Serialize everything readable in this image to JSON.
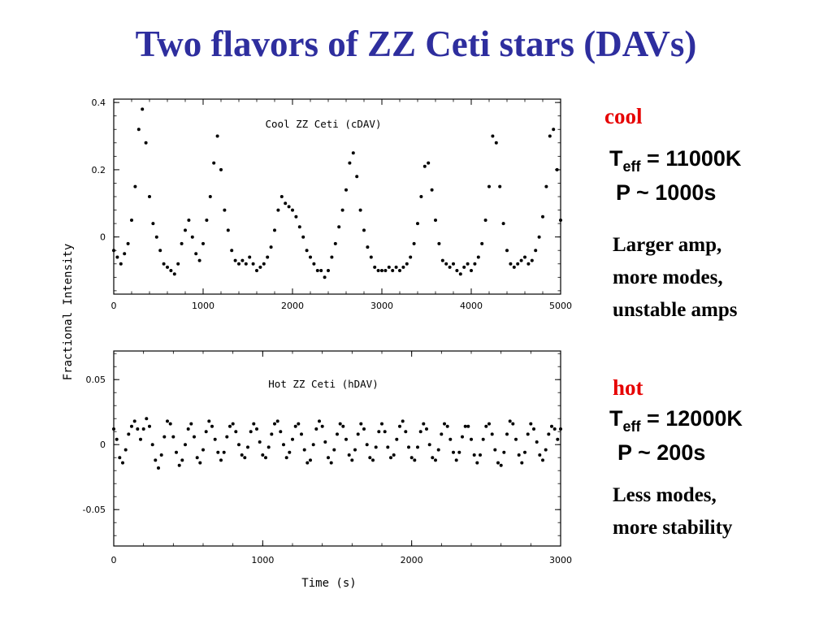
{
  "slide": {
    "title": "Two flavors of ZZ Ceti stars (DAVs)"
  },
  "cool": {
    "tag": "cool",
    "teff_prefix": "T",
    "teff_sub": "eff",
    "teff_value": " = 11000K",
    "period": "P ~ 1000s",
    "desc": [
      "Larger amp,",
      "more modes,",
      "unstable amps"
    ]
  },
  "hot": {
    "tag": "hot",
    "teff_prefix": "T",
    "teff_sub": "eff",
    "teff_value": " = 12000K",
    "period": "P ~ 200s",
    "desc": [
      "Less modes,",
      "more stability"
    ]
  },
  "chart_data": [
    {
      "type": "scatter",
      "title": "Cool ZZ Ceti (cDAV)",
      "xlim": [
        0,
        5000
      ],
      "ylim": [
        -0.17,
        0.41
      ],
      "xticks": [
        0,
        1000,
        2000,
        3000,
        4000,
        5000
      ],
      "yticks": [
        {
          "v": 0.4,
          "label": "0.4"
        },
        {
          "v": 0.2,
          "label": "0.2"
        },
        {
          "v": 0,
          "label": "0"
        }
      ],
      "ylabel": "Fractional Intensity",
      "xlabel": "",
      "color": "#000000",
      "series": [
        {
          "x": [
            0,
            40,
            80,
            120,
            160,
            200,
            240,
            280,
            320,
            360,
            400,
            440,
            480,
            520,
            560,
            600,
            640,
            680,
            720,
            760,
            800,
            840,
            880,
            920,
            960,
            1000,
            1040,
            1080,
            1120,
            1160,
            1200,
            1240,
            1280,
            1320,
            1360,
            1400,
            1440,
            1480,
            1520,
            1560,
            1600,
            1640,
            1680,
            1720,
            1760,
            1800,
            1840,
            1880,
            1920,
            1960,
            2000,
            2040,
            2080,
            2120,
            2160,
            2200,
            2240,
            2280,
            2320,
            2360,
            2400,
            2440,
            2480,
            2520,
            2560,
            2600,
            2640,
            2680,
            2720,
            2760,
            2800,
            2840,
            2880,
            2920,
            2960,
            3000,
            3040,
            3080,
            3120,
            3160,
            3200,
            3240,
            3280,
            3320,
            3360,
            3400,
            3440,
            3480,
            3520,
            3560,
            3600,
            3640,
            3680,
            3720,
            3760,
            3800,
            3840,
            3880,
            3920,
            3960,
            4000,
            4040,
            4080,
            4120,
            4160,
            4200,
            4240,
            4280,
            4320,
            4360,
            4400,
            4440,
            4480,
            4520,
            4560,
            4600,
            4640,
            4680,
            4720,
            4760,
            4800,
            4840,
            4880,
            4920,
            4960,
            5000
          ],
          "y": [
            -0.04,
            -0.06,
            -0.08,
            -0.05,
            -0.02,
            0.05,
            0.15,
            0.32,
            0.38,
            0.28,
            0.12,
            0.04,
            0.0,
            -0.04,
            -0.08,
            -0.09,
            -0.1,
            -0.11,
            -0.08,
            -0.02,
            0.02,
            0.05,
            0.0,
            -0.05,
            -0.07,
            -0.02,
            0.05,
            0.12,
            0.22,
            0.3,
            0.2,
            0.08,
            0.02,
            -0.04,
            -0.07,
            -0.08,
            -0.07,
            -0.08,
            -0.06,
            -0.08,
            -0.1,
            -0.09,
            -0.08,
            -0.06,
            -0.03,
            0.02,
            0.08,
            0.12,
            0.1,
            0.09,
            0.08,
            0.06,
            0.03,
            0.0,
            -0.04,
            -0.06,
            -0.08,
            -0.1,
            -0.1,
            -0.12,
            -0.1,
            -0.06,
            -0.02,
            0.03,
            0.08,
            0.14,
            0.22,
            0.25,
            0.18,
            0.08,
            0.02,
            -0.03,
            -0.06,
            -0.09,
            -0.1,
            -0.1,
            -0.1,
            -0.09,
            -0.1,
            -0.09,
            -0.1,
            -0.09,
            -0.08,
            -0.06,
            -0.02,
            0.04,
            0.12,
            0.21,
            0.22,
            0.14,
            0.05,
            -0.02,
            -0.07,
            -0.08,
            -0.09,
            -0.08,
            -0.1,
            -0.11,
            -0.09,
            -0.08,
            -0.1,
            -0.08,
            -0.06,
            -0.02,
            0.05,
            0.15,
            0.3,
            0.28,
            0.15,
            0.04,
            -0.04,
            -0.08,
            -0.09,
            -0.08,
            -0.07,
            -0.06,
            -0.08,
            -0.07,
            -0.04,
            0.0,
            0.06,
            0.15,
            0.3,
            0.32,
            0.2,
            0.05
          ]
        }
      ]
    },
    {
      "type": "scatter",
      "title": "Hot ZZ Ceti (hDAV)",
      "xlim": [
        0,
        3000
      ],
      "ylim": [
        -0.078,
        0.072
      ],
      "xticks": [
        0,
        1000,
        2000,
        3000
      ],
      "yticks": [
        {
          "v": 0.05,
          "label": "0.05"
        },
        {
          "v": 0,
          "label": "0"
        },
        {
          "v": -0.05,
          "label": "-0.05"
        }
      ],
      "ylabel": "",
      "xlabel": "Time  (s)",
      "color": "#000000",
      "series": [
        {
          "x": [
            0,
            20,
            40,
            60,
            80,
            100,
            120,
            140,
            160,
            180,
            200,
            220,
            240,
            260,
            280,
            300,
            320,
            340,
            360,
            380,
            400,
            420,
            440,
            460,
            480,
            500,
            520,
            540,
            560,
            580,
            600,
            620,
            640,
            660,
            680,
            700,
            720,
            740,
            760,
            780,
            800,
            820,
            840,
            860,
            880,
            900,
            920,
            940,
            960,
            980,
            1000,
            1020,
            1040,
            1060,
            1080,
            1100,
            1120,
            1140,
            1160,
            1180,
            1200,
            1220,
            1240,
            1260,
            1280,
            1300,
            1320,
            1340,
            1360,
            1380,
            1400,
            1420,
            1440,
            1460,
            1480,
            1500,
            1520,
            1540,
            1560,
            1580,
            1600,
            1620,
            1640,
            1660,
            1680,
            1700,
            1720,
            1740,
            1760,
            1780,
            1800,
            1820,
            1840,
            1860,
            1880,
            1900,
            1920,
            1940,
            1960,
            1980,
            2000,
            2020,
            2040,
            2060,
            2080,
            2100,
            2120,
            2140,
            2160,
            2180,
            2200,
            2220,
            2240,
            2260,
            2280,
            2300,
            2320,
            2340,
            2360,
            2380,
            2400,
            2420,
            2440,
            2460,
            2480,
            2500,
            2520,
            2540,
            2560,
            2580,
            2600,
            2620,
            2640,
            2660,
            2680,
            2700,
            2720,
            2740,
            2760,
            2780,
            2800,
            2820,
            2840,
            2860,
            2880,
            2900,
            2920,
            2940,
            2960,
            2980,
            3000
          ],
          "y": [
            0.012,
            0.004,
            -0.01,
            -0.014,
            -0.004,
            0.008,
            0.014,
            0.018,
            0.012,
            0.004,
            0.012,
            0.02,
            0.014,
            0.0,
            -0.012,
            -0.018,
            -0.008,
            0.006,
            0.018,
            0.016,
            0.006,
            -0.006,
            -0.016,
            -0.012,
            0.0,
            0.012,
            0.016,
            0.006,
            -0.01,
            -0.014,
            -0.004,
            0.01,
            0.018,
            0.014,
            0.004,
            -0.006,
            -0.012,
            -0.006,
            0.006,
            0.014,
            0.016,
            0.01,
            0.0,
            -0.008,
            -0.01,
            -0.002,
            0.01,
            0.016,
            0.012,
            0.002,
            -0.008,
            -0.01,
            -0.002,
            0.008,
            0.016,
            0.018,
            0.01,
            0.0,
            -0.01,
            -0.006,
            0.004,
            0.014,
            0.016,
            0.008,
            -0.004,
            -0.014,
            -0.012,
            0.0,
            0.012,
            0.018,
            0.014,
            0.002,
            -0.01,
            -0.014,
            -0.004,
            0.008,
            0.016,
            0.014,
            0.004,
            -0.008,
            -0.012,
            -0.004,
            0.008,
            0.016,
            0.012,
            0.0,
            -0.01,
            -0.012,
            -0.002,
            0.01,
            0.016,
            0.01,
            -0.002,
            -0.01,
            -0.008,
            0.004,
            0.014,
            0.018,
            0.01,
            -0.002,
            -0.01,
            -0.012,
            -0.002,
            0.01,
            0.016,
            0.012,
            0.0,
            -0.01,
            -0.012,
            -0.004,
            0.008,
            0.016,
            0.014,
            0.004,
            -0.006,
            -0.012,
            -0.006,
            0.006,
            0.014,
            0.014,
            0.004,
            -0.008,
            -0.014,
            -0.008,
            0.004,
            0.014,
            0.016,
            0.008,
            -0.004,
            -0.014,
            -0.016,
            -0.006,
            0.008,
            0.018,
            0.016,
            0.004,
            -0.008,
            -0.014,
            -0.006,
            0.008,
            0.016,
            0.012,
            0.002,
            -0.008,
            -0.012,
            -0.004,
            0.008,
            0.014,
            0.012,
            0.004,
            0.012
          ]
        }
      ]
    }
  ]
}
